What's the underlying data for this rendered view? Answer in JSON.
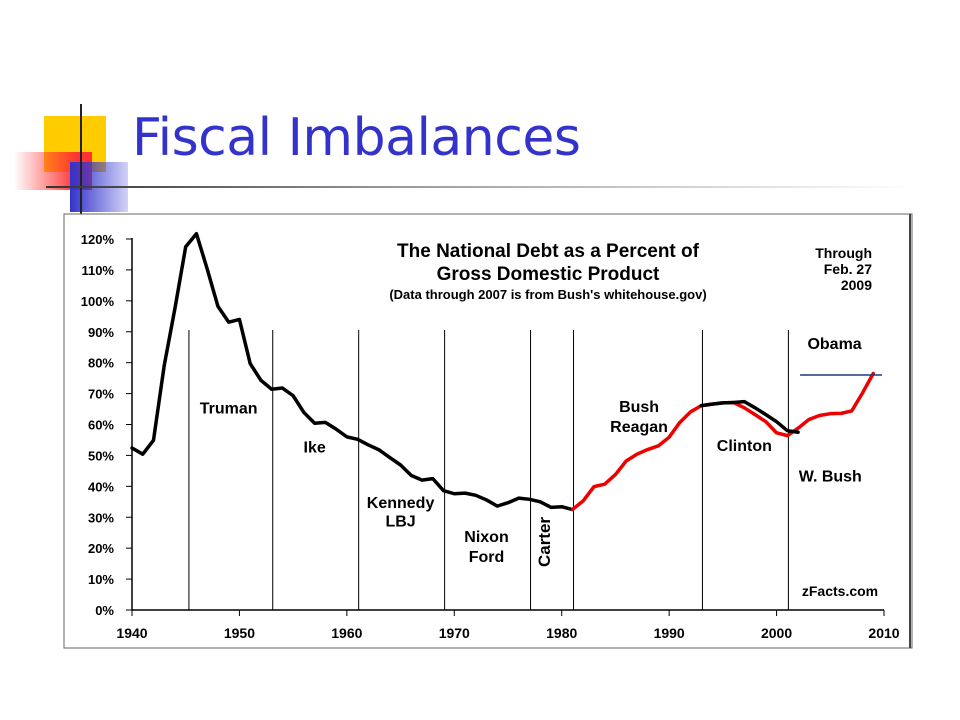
{
  "slide": {
    "title": "Fiscal Imbalances",
    "title_color": "#3333cc",
    "accent_colors": [
      "#ffcc00",
      "#ff3333",
      "#3333cc"
    ]
  },
  "chart_data": {
    "type": "line",
    "title": "The National Debt as a Percent of",
    "title_line2": "Gross Domestic Product",
    "subtitle": "(Data through 2007 is from Bush's whitehouse.gov)",
    "note": [
      "Through",
      "Feb. 27",
      "2009"
    ],
    "credit": "zFacts.com",
    "xlim": [
      1940,
      2010
    ],
    "ylim": [
      0,
      120
    ],
    "x_ticks": [
      "1940",
      "1950",
      "1960",
      "1970",
      "1980",
      "1990",
      "2000",
      "2010"
    ],
    "y_ticks": [
      "0%",
      "10%",
      "20%",
      "30%",
      "40%",
      "50%",
      "60%",
      "70%",
      "80%",
      "90%",
      "100%",
      "110%",
      "120%"
    ],
    "grid": false,
    "presidency_boundaries": [
      1945.3,
      1953.1,
      1961.1,
      1969.1,
      1977.1,
      1981.1,
      1993.1,
      2001.1
    ],
    "presidency_labels": [
      {
        "text": "Truman",
        "x": 1949,
        "y": 63.5
      },
      {
        "text": "Ike",
        "x": 1957,
        "y": 51
      },
      {
        "text": "Kennedy",
        "x": 1965,
        "y": 33
      },
      {
        "text": "LBJ",
        "x": 1965,
        "y": 27
      },
      {
        "text": "Nixon",
        "x": 1973,
        "y": 22
      },
      {
        "text": "Ford",
        "x": 1973,
        "y": 15.5
      },
      {
        "text": "Bush",
        "x": 1987.2,
        "y": 64
      },
      {
        "text": "Reagan",
        "x": 1987.2,
        "y": 57.5
      },
      {
        "text": "Clinton",
        "x": 1997,
        "y": 51.5
      },
      {
        "text": "W. Bush",
        "x": 2005,
        "y": 41.5
      },
      {
        "text": "Obama",
        "x": 2005.4,
        "y": 84.5
      }
    ],
    "carter_label": {
      "text": "Carter",
      "x": 1978.9,
      "y": 22
    },
    "obama_level": 76,
    "obama_line_x": [
      2002,
      2010
    ],
    "series": [
      {
        "color": "#000000",
        "x": [
          1940,
          1941,
          1942,
          1943,
          1944,
          1945,
          1946,
          1947,
          1948,
          1949,
          1950,
          1951,
          1952,
          1953,
          1954,
          1955,
          1956,
          1957,
          1958,
          1959,
          1960,
          1961,
          1962,
          1963,
          1964,
          1965,
          1966,
          1967,
          1968,
          1969,
          1970,
          1971,
          1972,
          1973,
          1974,
          1975,
          1976,
          1977,
          1978,
          1979,
          1980,
          1981
        ],
        "values": [
          52.4,
          50.4,
          54.9,
          79.1,
          97.6,
          117.5,
          121.7,
          110.3,
          98.2,
          93.1,
          94.0,
          79.7,
          74.3,
          71.4,
          71.8,
          69.3,
          63.9,
          60.4,
          60.7,
          58.5,
          56.0,
          55.2,
          53.4,
          51.8,
          49.3,
          46.9,
          43.5,
          42.0,
          42.5,
          38.6,
          37.6,
          37.8,
          37.1,
          35.6,
          33.6,
          34.7,
          36.2,
          35.8,
          35.0,
          33.2,
          33.4,
          32.5
        ]
      },
      {
        "color": "#ee0000",
        "x": [
          1981,
          1982,
          1983,
          1984,
          1985,
          1986,
          1987,
          1988,
          1989,
          1990,
          1991,
          1992,
          1993,
          1994,
          1995,
          1996,
          1997,
          1998,
          1999,
          2000,
          2001,
          2002,
          2003,
          2004,
          2005,
          2006,
          2007,
          2008,
          2009
        ],
        "values": [
          32.5,
          35.3,
          39.9,
          40.7,
          43.8,
          48.2,
          50.4,
          51.9,
          53.1,
          55.9,
          60.7,
          64.1,
          66.1,
          66.6,
          67.0,
          67.1,
          65.4,
          63.2,
          60.9,
          57.3,
          56.4,
          58.8,
          61.6,
          62.9,
          63.5,
          63.6,
          64.4,
          70.2,
          76.5
        ]
      },
      {
        "color": "#000000",
        "x": [
          1993,
          1994,
          1995,
          1996,
          1997,
          1998,
          1999,
          2000,
          2001,
          2002
        ],
        "values": [
          66.1,
          66.6,
          67.0,
          67.1,
          67.4,
          65.4,
          63.2,
          60.9,
          58.0,
          57.5
        ]
      }
    ]
  }
}
